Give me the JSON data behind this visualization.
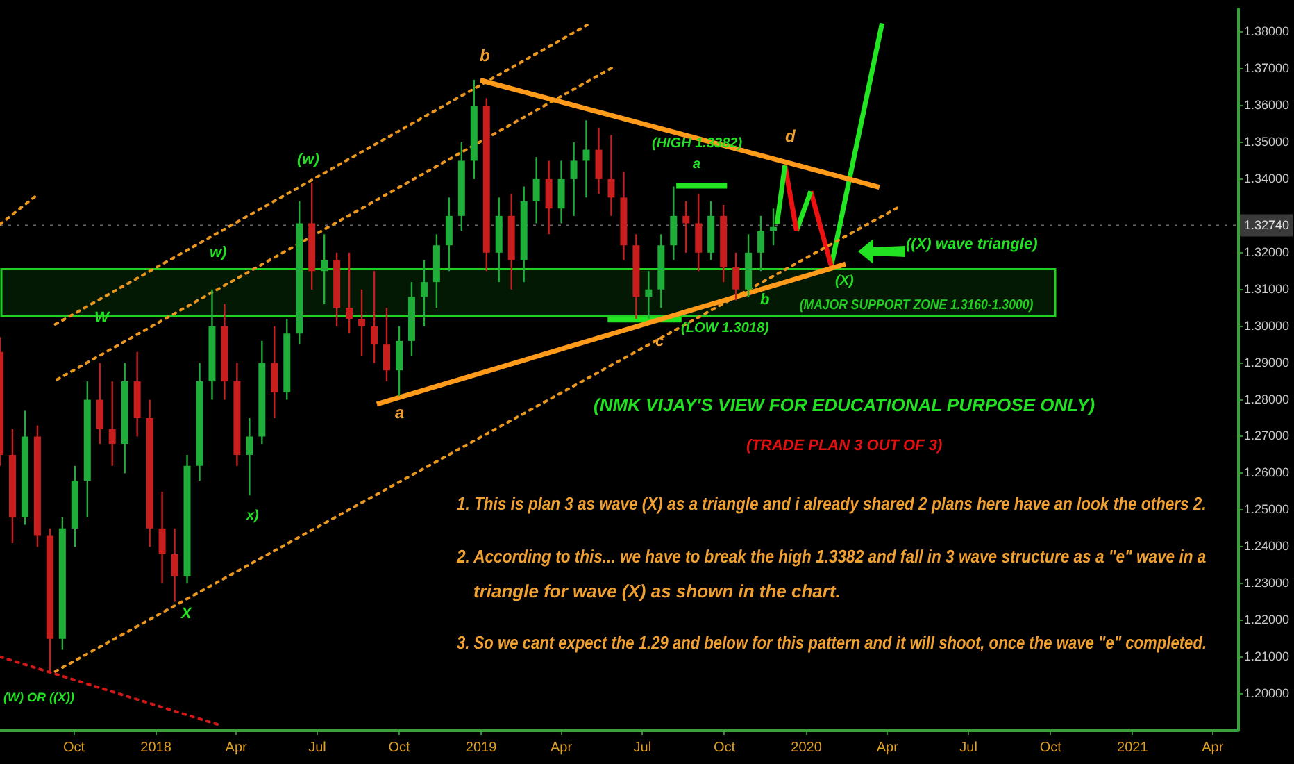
{
  "chart_data": {
    "type": "candlestick",
    "xlim": [
      "2017-07-10",
      "2021-04-30"
    ],
    "xticks": [
      {
        "value": "2017-10-01",
        "label": "Oct"
      },
      {
        "value": "2018-01-01",
        "label": "2018"
      },
      {
        "value": "2018-04-01",
        "label": "Apr"
      },
      {
        "value": "2018-07-01",
        "label": "Jul"
      },
      {
        "value": "2018-10-01",
        "label": "Oct"
      },
      {
        "value": "2019-01-01",
        "label": "2019"
      },
      {
        "value": "2019-04-01",
        "label": "Apr"
      },
      {
        "value": "2019-07-01",
        "label": "Jul"
      },
      {
        "value": "2019-10-01",
        "label": "Oct"
      },
      {
        "value": "2020-01-01",
        "label": "2020"
      },
      {
        "value": "2020-04-01",
        "label": "Apr"
      },
      {
        "value": "2020-07-01",
        "label": "Jul"
      },
      {
        "value": "2020-10-01",
        "label": "Oct"
      },
      {
        "value": "2021-01-01",
        "label": "2021"
      },
      {
        "value": "2021-04-01",
        "label": "Apr"
      }
    ],
    "ylim": [
      1.19,
      1.3863
    ],
    "yticks": [
      {
        "value": 1.2,
        "label": "1.20000"
      },
      {
        "value": 1.21,
        "label": "1.21000"
      },
      {
        "value": 1.22,
        "label": "1.22000"
      },
      {
        "value": 1.23,
        "label": "1.23000"
      },
      {
        "value": 1.24,
        "label": "1.24000"
      },
      {
        "value": 1.25,
        "label": "1.25000"
      },
      {
        "value": 1.26,
        "label": "1.26000"
      },
      {
        "value": 1.27,
        "label": "1.27000"
      },
      {
        "value": 1.28,
        "label": "1.28000"
      },
      {
        "value": 1.29,
        "label": "1.29000"
      },
      {
        "value": 1.3,
        "label": "1.30000"
      },
      {
        "value": 1.31,
        "label": "1.31000"
      },
      {
        "value": 1.32,
        "label": "1.32000"
      },
      {
        "value": 1.34,
        "label": "1.34000"
      },
      {
        "value": 1.35,
        "label": "1.35000"
      },
      {
        "value": 1.36,
        "label": "1.36000"
      },
      {
        "value": 1.37,
        "label": "1.37000"
      },
      {
        "value": 1.38,
        "label": "1.38000"
      }
    ],
    "grid": false,
    "legend": false,
    "series": [
      {
        "type": "candlestick",
        "colors": [
          "#c81e1e",
          "#c81e1e",
          "#1fae3a",
          "#c81e1e",
          "#c81e1e",
          "#1fae3a",
          "#1fae3a",
          "#1fae3a",
          "#c81e1e",
          "#c81e1e",
          "#1fae3a",
          "#c81e1e",
          "#c81e1e",
          "#c81e1e",
          "#c81e1e",
          "#1fae3a",
          "#1fae3a",
          "#1fae3a",
          "#c81e1e",
          "#c81e1e",
          "#1fae3a",
          "#1fae3a",
          "#c81e1e",
          "#1fae3a",
          "#1fae3a",
          "#c81e1e",
          "#1fae3a",
          "#c81e1e",
          "#c81e1e",
          "#c81e1e",
          "#c81e1e",
          "#c81e1e",
          "#1fae3a",
          "#1fae3a",
          "#1fae3a",
          "#1fae3a",
          "#1fae3a",
          "#1fae3a",
          "#1fae3a",
          "#c81e1e",
          "#1fae3a",
          "#c81e1e",
          "#1fae3a",
          "#1fae3a",
          "#c81e1e",
          "#1fae3a",
          "#1fae3a",
          "#1fae3a",
          "#c81e1e",
          "#c81e1e",
          "#c81e1e",
          "#c81e1e",
          "#1fae3a",
          "#1fae3a",
          "#1fae3a",
          "#c81e1e",
          "#c81e1e",
          "#1fae3a",
          "#c81e1e",
          "#c81e1e",
          "#1fae3a",
          "#1fae3a",
          "#1fae3a"
        ],
        "x": [
          "2017-07-10",
          "2017-07-24",
          "2017-08-07",
          "2017-08-21",
          "2017-09-04",
          "2017-09-18",
          "2017-10-02",
          "2017-10-16",
          "2017-10-30",
          "2017-11-13",
          "2017-11-27",
          "2017-12-11",
          "2017-12-25",
          "2018-01-08",
          "2018-01-22",
          "2018-02-05",
          "2018-02-19",
          "2018-03-05",
          "2018-03-19",
          "2018-04-02",
          "2018-04-16",
          "2018-04-30",
          "2018-05-14",
          "2018-05-28",
          "2018-06-11",
          "2018-06-25",
          "2018-07-09",
          "2018-07-23",
          "2018-08-06",
          "2018-08-20",
          "2018-09-03",
          "2018-09-17",
          "2018-10-01",
          "2018-10-15",
          "2018-10-29",
          "2018-11-12",
          "2018-11-26",
          "2018-12-10",
          "2018-12-24",
          "2019-01-07",
          "2019-01-21",
          "2019-02-04",
          "2019-02-18",
          "2019-03-04",
          "2019-03-18",
          "2019-04-01",
          "2019-04-15",
          "2019-04-29",
          "2019-05-13",
          "2019-05-27",
          "2019-06-10",
          "2019-06-24",
          "2019-07-08",
          "2019-07-22",
          "2019-08-05",
          "2019-08-19",
          "2019-09-02",
          "2019-09-16",
          "2019-09-30",
          "2019-10-14",
          "2019-10-28",
          "2019-11-11",
          "2019-11-25"
        ],
        "ohlc": [
          [
            1.293,
            1.297,
            1.262,
            1.265
          ],
          [
            1.265,
            1.272,
            1.241,
            1.248
          ],
          [
            1.248,
            1.277,
            1.246,
            1.27
          ],
          [
            1.27,
            1.273,
            1.24,
            1.243
          ],
          [
            1.243,
            1.245,
            1.206,
            1.215
          ],
          [
            1.215,
            1.248,
            1.212,
            1.245
          ],
          [
            1.245,
            1.262,
            1.24,
            1.258
          ],
          [
            1.258,
            1.285,
            1.248,
            1.28
          ],
          [
            1.28,
            1.29,
            1.268,
            1.272
          ],
          [
            1.272,
            1.285,
            1.262,
            1.268
          ],
          [
            1.268,
            1.29,
            1.26,
            1.285
          ],
          [
            1.285,
            1.293,
            1.27,
            1.275
          ],
          [
            1.275,
            1.28,
            1.24,
            1.245
          ],
          [
            1.245,
            1.255,
            1.23,
            1.238
          ],
          [
            1.238,
            1.245,
            1.225,
            1.232
          ],
          [
            1.232,
            1.265,
            1.23,
            1.262
          ],
          [
            1.262,
            1.29,
            1.258,
            1.285
          ],
          [
            1.285,
            1.31,
            1.28,
            1.3
          ],
          [
            1.3,
            1.306,
            1.28,
            1.285
          ],
          [
            1.285,
            1.29,
            1.262,
            1.265
          ],
          [
            1.265,
            1.275,
            1.254,
            1.27
          ],
          [
            1.27,
            1.296,
            1.268,
            1.29
          ],
          [
            1.29,
            1.3,
            1.275,
            1.282
          ],
          [
            1.282,
            1.302,
            1.28,
            1.298
          ],
          [
            1.298,
            1.334,
            1.295,
            1.328
          ],
          [
            1.328,
            1.339,
            1.31,
            1.315
          ],
          [
            1.315,
            1.325,
            1.306,
            1.318
          ],
          [
            1.318,
            1.32,
            1.3,
            1.305
          ],
          [
            1.305,
            1.32,
            1.298,
            1.302
          ],
          [
            1.302,
            1.31,
            1.292,
            1.3
          ],
          [
            1.3,
            1.315,
            1.29,
            1.295
          ],
          [
            1.295,
            1.305,
            1.285,
            1.288
          ],
          [
            1.288,
            1.3,
            1.281,
            1.296
          ],
          [
            1.296,
            1.312,
            1.292,
            1.308
          ],
          [
            1.308,
            1.318,
            1.3,
            1.312
          ],
          [
            1.312,
            1.325,
            1.305,
            1.322
          ],
          [
            1.322,
            1.335,
            1.315,
            1.33
          ],
          [
            1.33,
            1.35,
            1.326,
            1.345
          ],
          [
            1.345,
            1.367,
            1.34,
            1.36
          ],
          [
            1.36,
            1.362,
            1.315,
            1.32
          ],
          [
            1.32,
            1.335,
            1.312,
            1.33
          ],
          [
            1.33,
            1.336,
            1.31,
            1.318
          ],
          [
            1.318,
            1.338,
            1.312,
            1.334
          ],
          [
            1.334,
            1.346,
            1.328,
            1.34
          ],
          [
            1.34,
            1.345,
            1.325,
            1.332
          ],
          [
            1.332,
            1.345,
            1.328,
            1.34
          ],
          [
            1.34,
            1.35,
            1.33,
            1.345
          ],
          [
            1.345,
            1.356,
            1.335,
            1.348
          ],
          [
            1.348,
            1.354,
            1.336,
            1.34
          ],
          [
            1.34,
            1.352,
            1.33,
            1.335
          ],
          [
            1.335,
            1.342,
            1.318,
            1.322
          ],
          [
            1.322,
            1.325,
            1.302,
            1.308
          ],
          [
            1.308,
            1.315,
            1.302,
            1.31
          ],
          [
            1.31,
            1.325,
            1.305,
            1.322
          ],
          [
            1.322,
            1.338,
            1.318,
            1.33
          ],
          [
            1.33,
            1.334,
            1.32,
            1.328
          ],
          [
            1.328,
            1.336,
            1.315,
            1.32
          ],
          [
            1.32,
            1.334,
            1.318,
            1.33
          ],
          [
            1.33,
            1.333,
            1.312,
            1.316
          ],
          [
            1.316,
            1.32,
            1.307,
            1.31
          ],
          [
            1.31,
            1.325,
            1.308,
            1.32
          ],
          [
            1.32,
            1.33,
            1.315,
            1.326
          ],
          [
            1.326,
            1.332,
            1.322,
            1.327
          ]
        ]
      },
      {
        "type": "line",
        "color": "#ff9a1a",
        "x": [
          "2018-12-31",
          "2020-03-23"
        ],
        "values": [
          1.3669,
          1.3378
        ]
      },
      {
        "type": "line",
        "color": "#ff9a1a",
        "x": [
          "2018-09-06",
          "2020-02-14"
        ],
        "values": [
          1.2788,
          1.3169
        ]
      },
      {
        "type": "line",
        "color": "#e8961e",
        "line_style": "dotted",
        "x": [
          "2017-09-10",
          "2019-04-30"
        ],
        "values": [
          1.3005,
          1.3819
        ]
      },
      {
        "type": "line",
        "color": "#e8961e",
        "line_style": "dotted",
        "x": [
          "2017-09-12",
          "2019-05-28"
        ],
        "values": [
          1.2855,
          1.3703
        ]
      },
      {
        "type": "line",
        "color": "#e8961e",
        "line_style": "dotted",
        "x": [
          "2017-09-10",
          "2020-04-12"
        ],
        "values": [
          1.2061,
          1.3322
        ]
      },
      {
        "type": "line",
        "color": "#e8961e",
        "line_style": "dotted",
        "x": [
          "2017-07-10",
          "2017-08-18"
        ],
        "values": [
          1.3277,
          1.3352
        ]
      },
      {
        "type": "line",
        "color": "#d01818",
        "line_style": "dotted",
        "x": [
          "2017-07-10",
          "2018-03-15"
        ],
        "values": [
          1.2101,
          1.1914
        ]
      },
      {
        "type": "line",
        "color": "#22e622",
        "x": [
          "2019-08-08",
          "2019-10-04"
        ],
        "values": [
          1.3382,
          1.3382
        ]
      },
      {
        "type": "line",
        "color": "#22e622",
        "x": [
          "2019-05-23",
          "2019-08-14"
        ],
        "values": [
          1.3018,
          1.3018
        ]
      },
      {
        "type": "line",
        "color": "#22e622",
        "x": [
          "2019-11-29",
          "2019-12-08"
        ],
        "values": [
          1.3278,
          1.3437
        ]
      },
      {
        "type": "line",
        "color": "#ee1111",
        "x": [
          "2019-12-08",
          "2019-12-21"
        ],
        "values": [
          1.3437,
          1.326
        ]
      },
      {
        "type": "line",
        "color": "#22e622",
        "x": [
          "2019-12-21",
          "2020-01-06"
        ],
        "values": [
          1.326,
          1.3367
        ]
      },
      {
        "type": "line",
        "color": "#ee1111",
        "x": [
          "2020-01-06",
          "2020-01-29"
        ],
        "values": [
          1.3367,
          1.3164
        ]
      },
      {
        "type": "line",
        "color": "#22e622",
        "x": [
          "2020-01-29",
          "2020-03-26"
        ],
        "values": [
          1.3164,
          1.3824
        ]
      }
    ],
    "ref_lines": [
      {
        "axis": "y",
        "value": 1.3274,
        "label": "1.32740",
        "color": "#6a6a6a",
        "line_style": "dotted"
      }
    ],
    "bands": [
      {
        "axis": "y",
        "from": 1.3027,
        "to": 1.3155,
        "label": "(MAJOR SUPPORT ZONE 1.3160-1.3000)",
        "color": "#22d022"
      }
    ],
    "annotations": [
      "b",
      "(w)",
      "w)",
      "W",
      "x)",
      "X",
      "(W) OR ((X))",
      "a",
      "c",
      "(LOW 1.3018)",
      "b",
      "(HIGH 1.3382)",
      "a",
      "d",
      "(X)",
      "((X) wave triangle)",
      "(NMK VIJAY'S VIEW FOR EDUCATIONAL PURPOSE ONLY)",
      "(TRADE PLAN 3 OUT OF 3)",
      "1. This is plan 3 as wave (X) as a triangle and i already shared 2 plans here have an look the others 2.",
      "2. According to this... we have to break the high 1.3382 and fall in 3 wave structure as a \"e\" wave in a",
      "triangle for wave (X) as shown in the chart.",
      "3. So we cant expect the 1.29 and below for this pattern and it will shoot, once the wave \"e\" completed."
    ]
  }
}
